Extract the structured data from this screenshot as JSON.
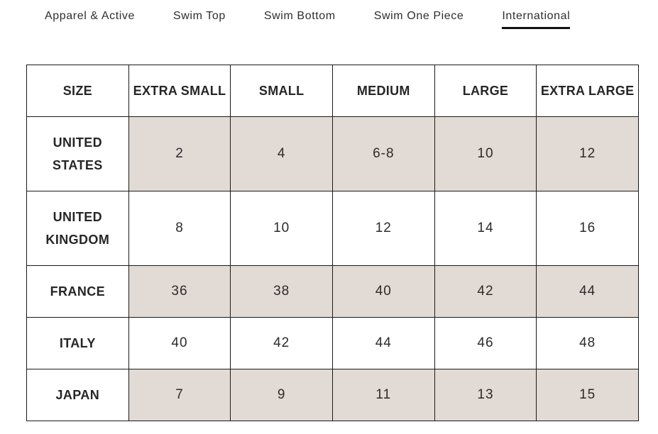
{
  "tabs": [
    {
      "label": "Apparel & Active",
      "active": false
    },
    {
      "label": "Swim Top",
      "active": false
    },
    {
      "label": "Swim Bottom",
      "active": false
    },
    {
      "label": "Swim One Piece",
      "active": false
    },
    {
      "label": "International",
      "active": true
    }
  ],
  "table": {
    "headers": [
      "SIZE",
      "EXTRA SMALL",
      "SMALL",
      "MEDIUM",
      "LARGE",
      "EXTRA LARGE"
    ],
    "rows": [
      {
        "label": "UNITED STATES",
        "values": [
          "2",
          "4",
          "6-8",
          "10",
          "12"
        ],
        "shaded": true
      },
      {
        "label": "UNITED KINGDOM",
        "values": [
          "8",
          "10",
          "12",
          "14",
          "16"
        ],
        "shaded": false
      },
      {
        "label": "FRANCE",
        "values": [
          "36",
          "38",
          "40",
          "42",
          "44"
        ],
        "shaded": true
      },
      {
        "label": "ITALY",
        "values": [
          "40",
          "42",
          "44",
          "46",
          "48"
        ],
        "shaded": false
      },
      {
        "label": "JAPAN",
        "values": [
          "7",
          "9",
          "11",
          "13",
          "15"
        ],
        "shaded": true
      }
    ]
  },
  "colors": {
    "shaded_cell": "#e2dad4",
    "table_border": "#1a1a1a",
    "text": "#2b2b2b",
    "active_tab_underline": "#111111",
    "background": "#ffffff"
  }
}
